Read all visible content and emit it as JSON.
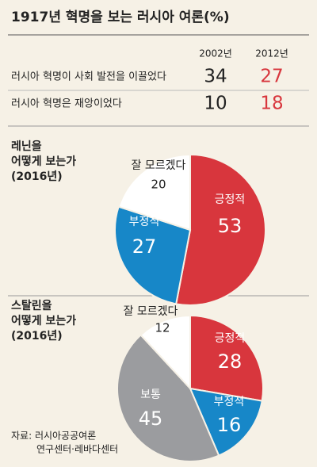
{
  "header": {
    "title": "1917년 혁명을 보는 러시아 여론(%)"
  },
  "table": {
    "columns": [
      "2002년",
      "2012년"
    ],
    "rows": [
      [
        "러시아 혁명이 사회 발전을 이끌었다",
        "34",
        "27"
      ],
      [
        "러시아 혁명은 재앙이었다",
        "10",
        "18"
      ]
    ]
  },
  "chart_data": [
    {
      "type": "pie",
      "title": [
        "레닌을",
        "어떻게 보는가",
        "(2016년)"
      ],
      "categories": [
        "긍정적",
        "부정적",
        "잘 모르겠다"
      ],
      "values": [
        53,
        27,
        20
      ],
      "colors": [
        "#d8363d",
        "#1787c8",
        "#ffffff"
      ]
    },
    {
      "type": "pie",
      "title": [
        "스탈린을",
        "어떻게 보는가",
        "(2016년)"
      ],
      "categories": [
        "긍정적",
        "부정적",
        "보통",
        "잘 모르겠다"
      ],
      "values": [
        28,
        16,
        45,
        12
      ],
      "colors": [
        "#d8363d",
        "#1787c8",
        "#9b9c9f",
        "#ffffff"
      ]
    }
  ],
  "source": [
    "자료: 러시아공공여론",
    "연구센터·레바다센터"
  ]
}
